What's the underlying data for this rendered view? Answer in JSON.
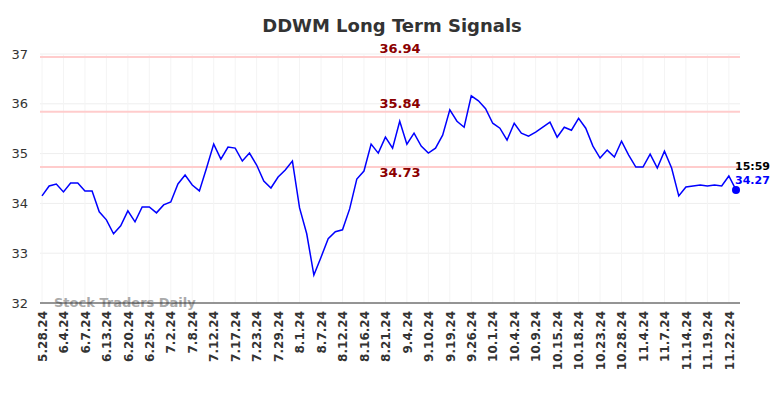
{
  "chart_data": {
    "type": "line",
    "title": "DDWM Long Term Signals",
    "watermark": "Stock Traders Daily",
    "categories": [
      "5.28.24",
      null,
      null,
      "6.4.24",
      null,
      null,
      "6.7.24",
      null,
      null,
      "6.13.24",
      null,
      null,
      "6.20.24",
      null,
      null,
      "6.25.24",
      null,
      null,
      "7.2.24",
      null,
      null,
      "7.8.24",
      null,
      null,
      "7.12.24",
      null,
      null,
      "7.17.24",
      null,
      null,
      "7.23.24",
      null,
      null,
      "7.29.24",
      null,
      null,
      "8.1.24",
      null,
      null,
      "8.7.24",
      null,
      null,
      "8.12.24",
      null,
      null,
      "8.16.24",
      null,
      null,
      "8.21.24",
      null,
      null,
      "9.4.24",
      null,
      null,
      "9.10.24",
      null,
      null,
      "9.19.24",
      null,
      null,
      "9.26.24",
      null,
      null,
      "10.1.24",
      null,
      null,
      "10.4.24",
      null,
      null,
      "10.9.24",
      null,
      null,
      "10.15.24",
      null,
      null,
      "10.18.24",
      null,
      null,
      "10.23.24",
      null,
      null,
      "10.28.24",
      null,
      null,
      "11.4.24",
      null,
      null,
      "11.7.24",
      null,
      null,
      "11.14.24",
      null,
      null,
      "11.19.24",
      null,
      null,
      "11.22.24",
      null
    ],
    "values": [
      34.15,
      34.35,
      34.39,
      34.23,
      34.41,
      34.41,
      34.25,
      34.25,
      33.83,
      33.67,
      33.39,
      33.55,
      33.85,
      33.63,
      33.93,
      33.93,
      33.81,
      33.97,
      34.03,
      34.39,
      34.57,
      34.37,
      34.25,
      34.71,
      35.19,
      34.89,
      35.13,
      35.11,
      34.85,
      35.01,
      34.77,
      34.45,
      34.31,
      34.53,
      34.67,
      34.85,
      33.91,
      33.39,
      32.56,
      32.92,
      33.29,
      33.43,
      33.47,
      33.89,
      34.49,
      34.65,
      35.19,
      35.01,
      35.33,
      35.11,
      35.65,
      35.19,
      35.41,
      35.15,
      35.01,
      35.11,
      35.37,
      35.88,
      35.65,
      35.53,
      36.16,
      36.06,
      35.9,
      35.61,
      35.51,
      35.27,
      35.61,
      35.41,
      35.35,
      35.43,
      35.53,
      35.63,
      35.33,
      35.53,
      35.47,
      35.71,
      35.51,
      35.15,
      34.91,
      35.07,
      34.93,
      35.25,
      34.97,
      34.73,
      34.73,
      34.99,
      34.71,
      35.05,
      34.71,
      34.15,
      34.33,
      34.35,
      34.37,
      34.35,
      34.37,
      34.35,
      34.55,
      34.27
    ],
    "color": "#0000ff",
    "reference_lines": [
      36.94,
      35.84,
      34.73
    ],
    "last_time": "15:59",
    "ylim": [
      32,
      37
    ],
    "yticks": [
      32,
      33,
      34,
      35,
      36,
      37
    ],
    "grid": true
  }
}
